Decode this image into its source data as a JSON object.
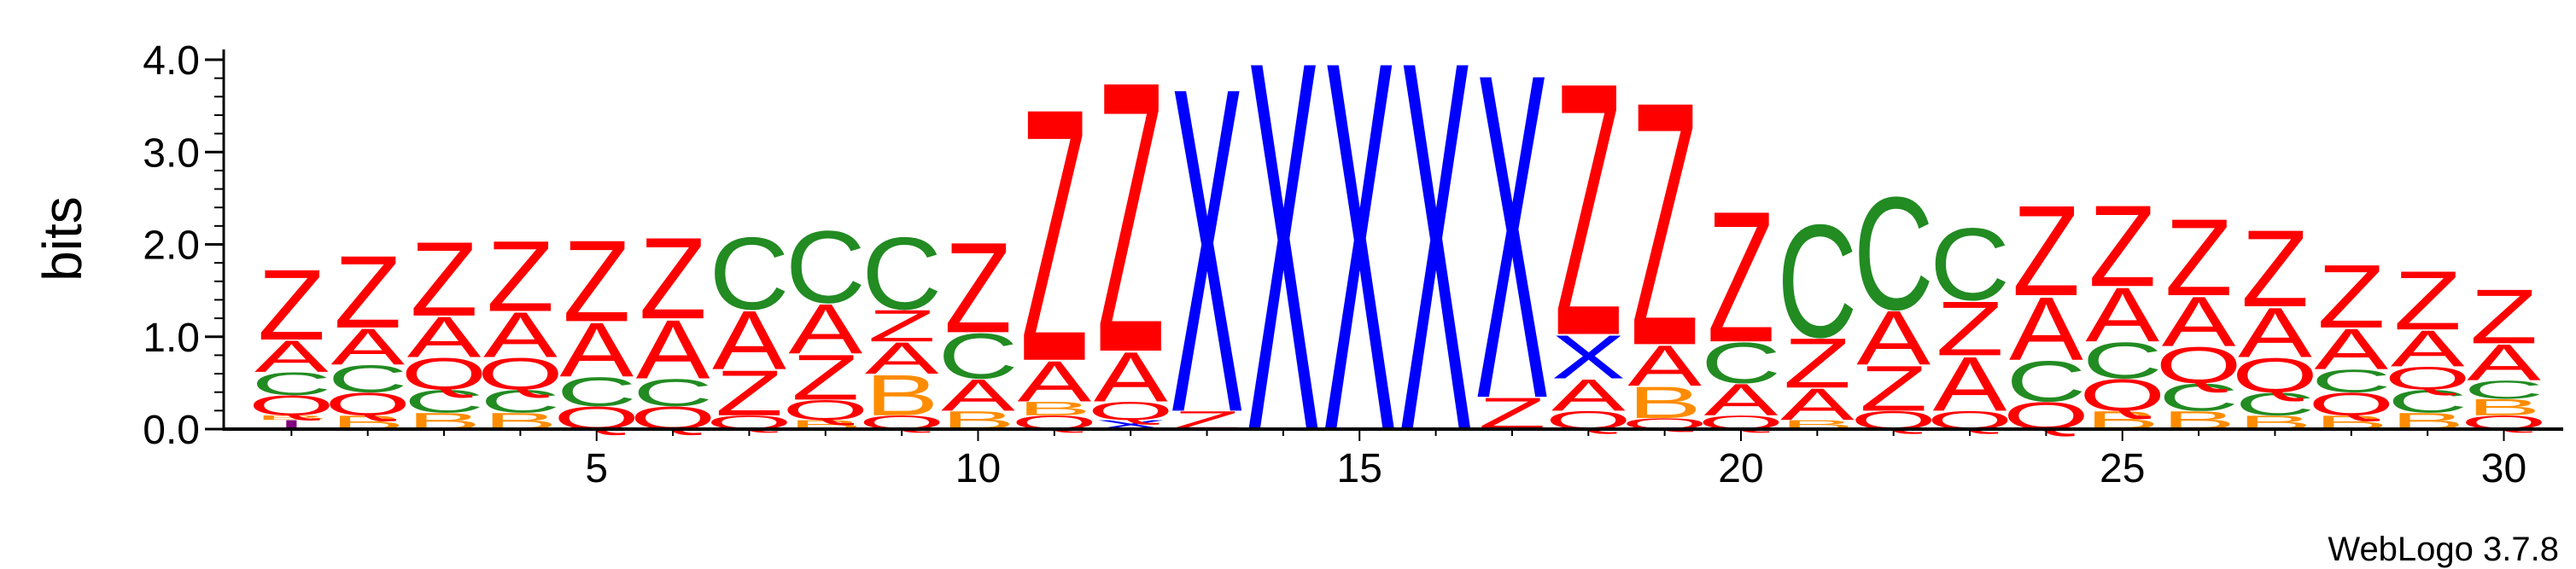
{
  "chart_data": {
    "type": "sequence-logo",
    "ylabel": "bits",
    "ylim": [
      0,
      4.0
    ],
    "yticks": [
      "0.0",
      "1.0",
      "2.0",
      "3.0",
      "4.0"
    ],
    "xlim": [
      1,
      30
    ],
    "xticks": [
      "5",
      "10",
      "15",
      "20",
      "25",
      "30"
    ],
    "footer": "WebLogo 3.7.8",
    "colors": {
      "Z": "#ff0000",
      "A": "#ff0000",
      "Q": "#ff0000",
      "C": "#228b22",
      "B": "#ff8c00",
      "X": "#0000ff",
      "I": "#800080"
    },
    "columns": [
      {
        "pos": 1,
        "stack": [
          [
            "I",
            0.1
          ],
          [
            "B",
            0.05
          ],
          [
            "Q",
            0.22
          ],
          [
            "C",
            0.25
          ],
          [
            "A",
            0.35
          ],
          [
            "Z",
            0.78
          ]
        ]
      },
      {
        "pos": 2,
        "stack": [
          [
            "B",
            0.15
          ],
          [
            "Q",
            0.25
          ],
          [
            "C",
            0.3
          ],
          [
            "A",
            0.4
          ],
          [
            "Z",
            0.8
          ]
        ]
      },
      {
        "pos": 3,
        "stack": [
          [
            "B",
            0.18
          ],
          [
            "C",
            0.25
          ],
          [
            "Q",
            0.35
          ],
          [
            "A",
            0.45
          ],
          [
            "Z",
            0.82
          ]
        ]
      },
      {
        "pos": 4,
        "stack": [
          [
            "B",
            0.18
          ],
          [
            "C",
            0.25
          ],
          [
            "Q",
            0.35
          ],
          [
            "A",
            0.5
          ],
          [
            "Z",
            0.78
          ]
        ]
      },
      {
        "pos": 5,
        "stack": [
          [
            "Q",
            0.25
          ],
          [
            "C",
            0.32
          ],
          [
            "A",
            0.6
          ],
          [
            "Z",
            0.9
          ]
        ]
      },
      {
        "pos": 6,
        "stack": [
          [
            "Q",
            0.25
          ],
          [
            "C",
            0.3
          ],
          [
            "A",
            0.65
          ],
          [
            "Z",
            0.9
          ]
        ]
      },
      {
        "pos": 7,
        "stack": [
          [
            "Q",
            0.15
          ],
          [
            "Z",
            0.5
          ],
          [
            "A",
            0.65
          ],
          [
            "C",
            0.8
          ]
        ]
      },
      {
        "pos": 8,
        "stack": [
          [
            "B",
            0.1
          ],
          [
            "Q",
            0.22
          ],
          [
            "Z",
            0.5
          ],
          [
            "A",
            0.55
          ],
          [
            "C",
            0.8
          ]
        ]
      },
      {
        "pos": 9,
        "stack": [
          [
            "Q",
            0.15
          ],
          [
            "B",
            0.45
          ],
          [
            "A",
            0.35
          ],
          [
            "Z",
            0.35
          ],
          [
            "C",
            0.8
          ]
        ]
      },
      {
        "pos": 10,
        "stack": [
          [
            "B",
            0.2
          ],
          [
            "A",
            0.35
          ],
          [
            "C",
            0.5
          ],
          [
            "Z",
            1.0
          ]
        ]
      },
      {
        "pos": 11,
        "stack": [
          [
            "Q",
            0.15
          ],
          [
            "B",
            0.15
          ],
          [
            "A",
            0.45
          ],
          [
            "Z",
            2.8
          ]
        ]
      },
      {
        "pos": 12,
        "stack": [
          [
            "X",
            0.1
          ],
          [
            "Q",
            0.2
          ],
          [
            "A",
            0.55
          ],
          [
            "Z",
            3.0
          ]
        ]
      },
      {
        "pos": 13,
        "stack": [
          [
            "Z",
            0.2
          ],
          [
            "X",
            3.6
          ]
        ]
      },
      {
        "pos": 14,
        "stack": [
          [
            "X",
            4.1
          ]
        ]
      },
      {
        "pos": 15,
        "stack": [
          [
            "X",
            4.1
          ]
        ]
      },
      {
        "pos": 16,
        "stack": [
          [
            "X",
            4.1
          ]
        ]
      },
      {
        "pos": 17,
        "stack": [
          [
            "Z",
            0.35
          ],
          [
            "X",
            3.6
          ]
        ]
      },
      {
        "pos": 18,
        "stack": [
          [
            "Q",
            0.2
          ],
          [
            "A",
            0.35
          ],
          [
            "X",
            0.48
          ],
          [
            "Z",
            2.8
          ]
        ]
      },
      {
        "pos": 19,
        "stack": [
          [
            "Q",
            0.12
          ],
          [
            "B",
            0.35
          ],
          [
            "A",
            0.45
          ],
          [
            "Z",
            2.7
          ]
        ]
      },
      {
        "pos": 20,
        "stack": [
          [
            "Q",
            0.15
          ],
          [
            "A",
            0.35
          ],
          [
            "C",
            0.45
          ],
          [
            "Z",
            1.45
          ]
        ]
      },
      {
        "pos": 21,
        "stack": [
          [
            "B",
            0.1
          ],
          [
            "A",
            0.35
          ],
          [
            "Z",
            0.55
          ],
          [
            "C",
            1.25
          ]
        ]
      },
      {
        "pos": 22,
        "stack": [
          [
            "Q",
            0.2
          ],
          [
            "Z",
            0.5
          ],
          [
            "A",
            0.6
          ],
          [
            "C",
            1.25
          ]
        ]
      },
      {
        "pos": 23,
        "stack": [
          [
            "Q",
            0.2
          ],
          [
            "A",
            0.6
          ],
          [
            "Z",
            0.6
          ],
          [
            "C",
            0.8
          ]
        ]
      },
      {
        "pos": 24,
        "stack": [
          [
            "Q",
            0.3
          ],
          [
            "C",
            0.45
          ],
          [
            "A",
            0.7
          ],
          [
            "Z",
            1.0
          ]
        ]
      },
      {
        "pos": 25,
        "stack": [
          [
            "B",
            0.2
          ],
          [
            "Q",
            0.35
          ],
          [
            "C",
            0.4
          ],
          [
            "A",
            0.6
          ],
          [
            "Z",
            0.9
          ]
        ]
      },
      {
        "pos": 26,
        "stack": [
          [
            "B",
            0.2
          ],
          [
            "C",
            0.3
          ],
          [
            "Q",
            0.4
          ],
          [
            "A",
            0.55
          ],
          [
            "Z",
            0.85
          ]
        ]
      },
      {
        "pos": 27,
        "stack": [
          [
            "B",
            0.15
          ],
          [
            "C",
            0.25
          ],
          [
            "Q",
            0.38
          ],
          [
            "A",
            0.55
          ],
          [
            "Z",
            0.85
          ]
        ]
      },
      {
        "pos": 28,
        "stack": [
          [
            "B",
            0.15
          ],
          [
            "Q",
            0.25
          ],
          [
            "C",
            0.25
          ],
          [
            "A",
            0.45
          ],
          [
            "Z",
            0.7
          ]
        ]
      },
      {
        "pos": 29,
        "stack": [
          [
            "B",
            0.18
          ],
          [
            "C",
            0.25
          ],
          [
            "Q",
            0.25
          ],
          [
            "A",
            0.4
          ],
          [
            "Z",
            0.65
          ]
        ]
      },
      {
        "pos": 30,
        "stack": [
          [
            "Q",
            0.15
          ],
          [
            "B",
            0.18
          ],
          [
            "C",
            0.2
          ],
          [
            "A",
            0.4
          ],
          [
            "Z",
            0.6
          ]
        ]
      }
    ]
  }
}
